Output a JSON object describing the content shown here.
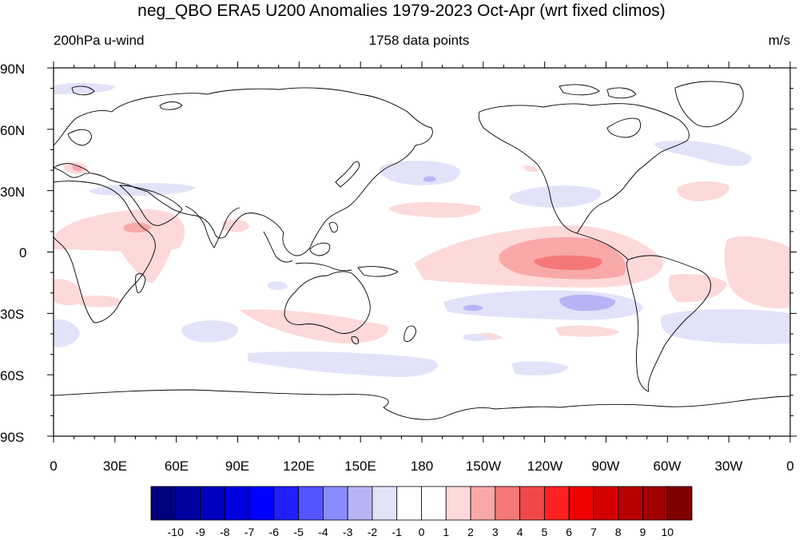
{
  "title": "neg_QBO ERA5 U200 Anomalies 1979-2023 Oct-Apr (wrt fixed climos)",
  "left_string": "200hPa u-wind",
  "center_string": "1758 data points",
  "right_string": "m/s",
  "lat_labels": [
    "90N",
    "60N",
    "30N",
    "0",
    "30S",
    "60S",
    "90S"
  ],
  "lon_labels": [
    "0",
    "30E",
    "60E",
    "90E",
    "120E",
    "150E",
    "180",
    "150W",
    "120W",
    "90W",
    "60W",
    "30W",
    "0"
  ],
  "colorbar": {
    "labels": [
      "-10",
      "-9",
      "-8",
      "-7",
      "-6",
      "-5",
      "-4",
      "-3",
      "-2",
      "-1",
      "0",
      "1",
      "2",
      "3",
      "4",
      "5",
      "6",
      "7",
      "8",
      "9",
      "10"
    ],
    "colors": [
      "#00007f",
      "#00009f",
      "#0000bf",
      "#0000df",
      "#0000ff",
      "#2020ff",
      "#5555ff",
      "#8a8aff",
      "#b5b5f5",
      "#e2e2f8",
      "#ffffff",
      "#ffffff",
      "#fdd9d9",
      "#f9a8a8",
      "#f47878",
      "#f04848",
      "#ff2020",
      "#f00000",
      "#d40000",
      "#b80000",
      "#a00000",
      "#800000"
    ]
  }
}
